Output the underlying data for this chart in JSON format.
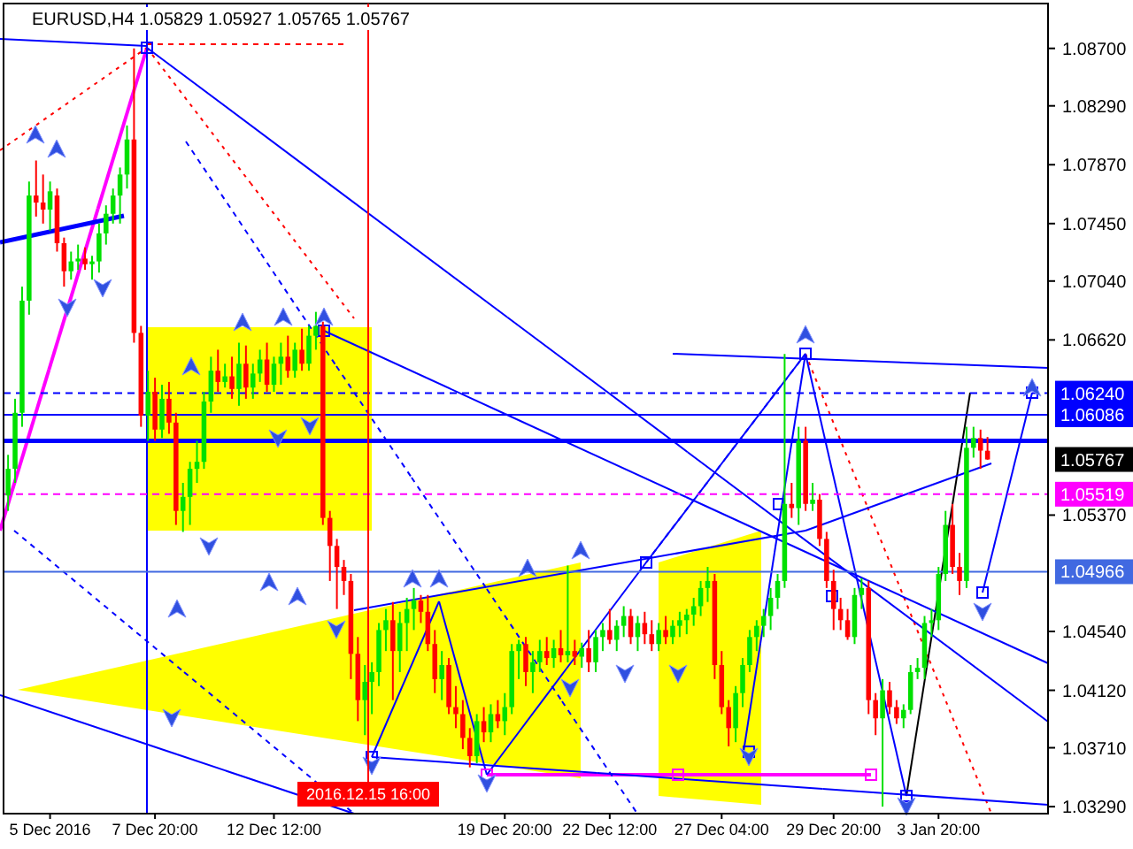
{
  "chart_data": {
    "type": "candlestick",
    "title": "EURUSD,H4  1.05829 1.05927 1.05765 1.05767",
    "categories": [
      null,
      null,
      null,
      null,
      null,
      null,
      "5 Dec 2016",
      null,
      null,
      null,
      null,
      null,
      null,
      null,
      null,
      null,
      null,
      null,
      null,
      null,
      null,
      "7 Dec 20:00",
      null,
      null,
      null,
      null,
      null,
      null,
      null,
      null,
      null,
      null,
      null,
      null,
      null,
      null,
      null,
      null,
      "12 Dec 12:00",
      null,
      null,
      null,
      null,
      null,
      null,
      null,
      null,
      null,
      null,
      null,
      null,
      null,
      null,
      null,
      null,
      null,
      null,
      null,
      null,
      null,
      null,
      null,
      null,
      null,
      null,
      null,
      null,
      null,
      null,
      null,
      null,
      "19 Dec 20:00",
      null,
      null,
      null,
      null,
      null,
      null,
      null,
      null,
      null,
      null,
      null,
      null,
      null,
      null,
      "22 Dec 12:00",
      null,
      null,
      null,
      null,
      null,
      null,
      null,
      null,
      null,
      null,
      null,
      null,
      null,
      null,
      null,
      "27 Dec 04:00",
      null,
      null,
      null,
      null,
      null,
      null,
      null,
      null,
      null,
      null,
      null,
      null,
      null,
      null,
      null,
      "29 Dec 20:00",
      null,
      null,
      null,
      null,
      null,
      null,
      null,
      null,
      null,
      null,
      null,
      null,
      null,
      null,
      "3 Jan 20:00",
      null,
      null,
      null,
      null,
      null,
      null,
      null,
      null,
      null,
      null,
      null,
      null,
      null,
      null,
      null
    ],
    "ohlc": [
      [
        1.0551,
        1.058,
        1.054,
        1.057
      ],
      [
        1.057,
        1.062,
        1.056,
        1.061
      ],
      [
        1.061,
        1.07,
        1.06,
        1.069
      ],
      [
        1.069,
        1.0775,
        1.068,
        1.0765
      ],
      [
        1.0765,
        1.079,
        1.075,
        1.076
      ],
      [
        1.076,
        1.078,
        1.0745,
        1.0755
      ],
      [
        1.0755,
        1.0775,
        1.074,
        1.0768
      ],
      [
        1.0765,
        1.077,
        1.0725,
        1.0731
      ],
      [
        1.0731,
        1.0735,
        1.07,
        1.0711
      ],
      [
        1.0711,
        1.0725,
        1.0705,
        1.0718
      ],
      [
        1.0718,
        1.073,
        1.0712,
        1.072
      ],
      [
        1.072,
        1.0728,
        1.0712,
        1.0716
      ],
      [
        1.0716,
        1.0722,
        1.0705,
        1.0718
      ],
      [
        1.0718,
        1.0745,
        1.071,
        1.0738
      ],
      [
        1.0738,
        1.0758,
        1.073,
        1.0752
      ],
      [
        1.0752,
        1.077,
        1.0745,
        1.0765
      ],
      [
        1.0765,
        1.0785,
        1.0745,
        1.078
      ],
      [
        1.078,
        1.0815,
        1.077,
        1.0805
      ],
      [
        1.0805,
        1.087,
        1.066,
        1.0667
      ],
      [
        1.0667,
        1.0672,
        1.06,
        1.0608
      ],
      [
        1.0608,
        1.064,
        1.059,
        1.0625
      ],
      [
        1.0625,
        1.0635,
        1.059,
        1.0598
      ],
      [
        1.0598,
        1.063,
        1.0592,
        1.062
      ],
      [
        1.062,
        1.0632,
        1.0595,
        1.0603
      ],
      [
        1.0603,
        1.061,
        1.053,
        1.054
      ],
      [
        1.054,
        1.056,
        1.0525,
        1.055
      ],
      [
        1.055,
        1.0575,
        1.053,
        1.057
      ],
      [
        1.057,
        1.059,
        1.056,
        1.0575
      ],
      [
        1.0575,
        1.0625,
        1.057,
        1.0618
      ],
      [
        1.0618,
        1.065,
        1.061,
        1.064
      ],
      [
        1.064,
        1.0655,
        1.0625,
        1.0632
      ],
      [
        1.0632,
        1.0645,
        1.0628,
        1.0636
      ],
      [
        1.0636,
        1.065,
        1.062,
        1.0627
      ],
      [
        1.0627,
        1.066,
        1.0615,
        1.0645
      ],
      [
        1.0645,
        1.0658,
        1.062,
        1.0628
      ],
      [
        1.0628,
        1.0645,
        1.062,
        1.0638
      ],
      [
        1.0638,
        1.0655,
        1.0632,
        1.0648
      ],
      [
        1.0648,
        1.066,
        1.0625,
        1.063
      ],
      [
        1.063,
        1.065,
        1.0625,
        1.0645
      ],
      [
        1.0645,
        1.066,
        1.063,
        1.065
      ],
      [
        1.065,
        1.0665,
        1.0635,
        1.064
      ],
      [
        1.064,
        1.066,
        1.0635,
        1.0655
      ],
      [
        1.0655,
        1.067,
        1.064,
        1.0645
      ],
      [
        1.0645,
        1.0672,
        1.064,
        1.0665
      ],
      [
        1.0665,
        1.0682,
        1.0655,
        1.0672
      ],
      [
        1.0672,
        1.0675,
        1.053,
        1.0535
      ],
      [
        1.0535,
        1.054,
        1.049,
        1.0515
      ],
      [
        1.0515,
        1.052,
        1.047,
        1.05
      ],
      [
        1.05,
        1.0505,
        1.048,
        1.049
      ],
      [
        1.049,
        1.0495,
        1.042,
        1.0438
      ],
      [
        1.0438,
        1.045,
        1.039,
        1.0405
      ],
      [
        1.0405,
        1.043,
        1.038,
        1.0418
      ],
      [
        1.0418,
        1.0432,
        1.0395,
        1.0425
      ],
      [
        1.0425,
        1.046,
        1.0415,
        1.0455
      ],
      [
        1.0455,
        1.047,
        1.044,
        1.0462
      ],
      [
        1.0462,
        1.0475,
        1.0405,
        1.044
      ],
      [
        1.044,
        1.0468,
        1.0425,
        1.046
      ],
      [
        1.046,
        1.0478,
        1.044,
        1.047
      ],
      [
        1.047,
        1.0485,
        1.0455,
        1.0476
      ],
      [
        1.0476,
        1.048,
        1.046,
        1.0468
      ],
      [
        1.0468,
        1.048,
        1.044,
        1.0445
      ],
      [
        1.0445,
        1.0455,
        1.041,
        1.042
      ],
      [
        1.042,
        1.044,
        1.0405,
        1.043
      ],
      [
        1.043,
        1.0435,
        1.0395,
        1.04
      ],
      [
        1.04,
        1.0415,
        1.0385,
        1.0395
      ],
      [
        1.0395,
        1.0405,
        1.037,
        1.0378
      ],
      [
        1.0378,
        1.0385,
        1.0357,
        1.0365
      ],
      [
        1.0365,
        1.0395,
        1.036,
        1.039
      ],
      [
        1.039,
        1.04,
        1.0375,
        1.0382
      ],
      [
        1.0382,
        1.0402,
        1.0375,
        1.0395
      ],
      [
        1.0395,
        1.0405,
        1.0385,
        1.039
      ],
      [
        1.039,
        1.041,
        1.038,
        1.04
      ],
      [
        1.04,
        1.0445,
        1.0395,
        1.044
      ],
      [
        1.044,
        1.0448,
        1.042,
        1.0445
      ],
      [
        1.0445,
        1.045,
        1.0415,
        1.0425
      ],
      [
        1.0425,
        1.044,
        1.041,
        1.0432
      ],
      [
        1.0432,
        1.0448,
        1.0425,
        1.044
      ],
      [
        1.044,
        1.045,
        1.043,
        1.0435
      ],
      [
        1.0435,
        1.0448,
        1.0428,
        1.0442
      ],
      [
        1.0442,
        1.0455,
        1.0432,
        1.0437
      ],
      [
        1.0437,
        1.0501,
        1.0432,
        1.044
      ],
      [
        1.044,
        1.0448,
        1.043,
        1.0436
      ],
      [
        1.0436,
        1.0446,
        1.0428,
        1.0442
      ],
      [
        1.0442,
        1.0455,
        1.0425,
        1.0432
      ],
      [
        1.0432,
        1.0455,
        1.0425,
        1.045
      ],
      [
        1.045,
        1.046,
        1.044,
        1.0455
      ],
      [
        1.0455,
        1.047,
        1.0445,
        1.0448
      ],
      [
        1.0448,
        1.0462,
        1.044,
        1.0458
      ],
      [
        1.0458,
        1.0472,
        1.045,
        1.0465
      ],
      [
        1.0465,
        1.047,
        1.0445,
        1.045
      ],
      [
        1.045,
        1.0465,
        1.044,
        1.046
      ],
      [
        1.046,
        1.0468,
        1.0445,
        1.0452
      ],
      [
        1.0452,
        1.0462,
        1.044,
        1.0445
      ],
      [
        1.0445,
        1.046,
        1.044,
        1.0455
      ],
      [
        1.0455,
        1.0465,
        1.0445,
        1.045
      ],
      [
        1.045,
        1.0462,
        1.0445,
        1.0458
      ],
      [
        1.0458,
        1.0468,
        1.045,
        1.0462
      ],
      [
        1.0462,
        1.047,
        1.0452,
        1.0466
      ],
      [
        1.0466,
        1.0478,
        1.0458,
        1.0472
      ],
      [
        1.0472,
        1.049,
        1.0465,
        1.0485
      ],
      [
        1.0485,
        1.05,
        1.0475,
        1.049
      ],
      [
        1.049,
        1.0495,
        1.042,
        1.043
      ],
      [
        1.043,
        1.044,
        1.0395,
        1.04
      ],
      [
        1.04,
        1.0405,
        1.0372,
        1.0385
      ],
      [
        1.0385,
        1.0415,
        1.0375,
        1.041
      ],
      [
        1.041,
        1.0435,
        1.04,
        1.043
      ],
      [
        1.043,
        1.0455,
        1.0425,
        1.045
      ],
      [
        1.045,
        1.0462,
        1.044,
        1.0458
      ],
      [
        1.0458,
        1.047,
        1.045,
        1.0465
      ],
      [
        1.0465,
        1.0485,
        1.0455,
        1.0478
      ],
      [
        1.0478,
        1.0495,
        1.047,
        1.049
      ],
      [
        1.049,
        1.0652,
        1.0485,
        1.0545
      ],
      [
        1.0545,
        1.056,
        1.0535,
        1.0542
      ],
      [
        1.0542,
        1.06,
        1.053,
        1.059
      ],
      [
        1.059,
        1.06,
        1.054,
        1.0545
      ],
      [
        1.0545,
        1.056,
        1.054,
        1.0548
      ],
      [
        1.0548,
        1.0552,
        1.0515,
        1.052
      ],
      [
        1.052,
        1.0525,
        1.0485,
        1.049
      ],
      [
        1.049,
        1.0498,
        1.0455,
        1.047
      ],
      [
        1.047,
        1.0478,
        1.0455,
        1.0462
      ],
      [
        1.0462,
        1.047,
        1.0448,
        1.045
      ],
      [
        1.045,
        1.0485,
        1.0445,
        1.048
      ],
      [
        1.048,
        1.0492,
        1.047,
        1.0485
      ],
      [
        1.0485,
        1.049,
        1.0395,
        1.0405
      ],
      [
        1.0405,
        1.041,
        1.038,
        1.0392
      ],
      [
        1.0392,
        1.042,
        1.0329,
        1.0412
      ],
      [
        1.0412,
        1.0418,
        1.0395,
        1.04
      ],
      [
        1.04,
        1.0405,
        1.0388,
        1.0392
      ],
      [
        1.0392,
        1.0402,
        1.0385,
        1.0398
      ],
      [
        1.0398,
        1.043,
        1.0395,
        1.0425
      ],
      [
        1.0425,
        1.0435,
        1.042,
        1.0428
      ],
      [
        1.0428,
        1.0465,
        1.042,
        1.046
      ],
      [
        1.046,
        1.047,
        1.045,
        1.0462
      ],
      [
        1.0462,
        1.05,
        1.0455,
        1.0495
      ],
      [
        1.0495,
        1.054,
        1.049,
        1.053
      ],
      [
        1.053,
        1.0545,
        1.0495,
        1.05
      ],
      [
        1.05,
        1.051,
        1.048,
        1.049
      ],
      [
        1.049,
        1.06,
        1.0485,
        1.0585
      ],
      [
        1.0585,
        1.06,
        1.0578,
        1.0592
      ],
      [
        1.0592,
        1.0598,
        1.057,
        1.0583
      ],
      [
        1.05829,
        1.05927,
        1.05765,
        1.05767
      ],
      null,
      null,
      null,
      null,
      null,
      null,
      null,
      null
    ],
    "ylim": [
      1.0324,
      1.0902
    ],
    "yticks": [
      {
        "value": 1.087,
        "label": "1.08700"
      },
      {
        "value": 1.0829,
        "label": "1.08290"
      },
      {
        "value": 1.0787,
        "label": "1.07870"
      },
      {
        "value": 1.0745,
        "label": "1.07450"
      },
      {
        "value": 1.0704,
        "label": "1.07040"
      },
      {
        "value": 1.0662,
        "label": "1.06620"
      },
      {
        "value": 1.0537,
        "label": "1.05370"
      },
      {
        "value": 1.0454,
        "label": "1.04540"
      },
      {
        "value": 1.0412,
        "label": "1.04120"
      },
      {
        "value": 1.0371,
        "label": "1.03710"
      },
      {
        "value": 1.0329,
        "label": "1.03290"
      }
    ],
    "ref_lines": [
      {
        "axis": "y",
        "value": 1.0624,
        "label": "1.06240",
        "color": "#0000ff",
        "line_style": "dashed"
      },
      {
        "axis": "y",
        "value": 1.06086,
        "label": "1.06086",
        "color": "#0000ff",
        "line_style": "solid"
      },
      {
        "axis": "y",
        "value": 1.059,
        "color": "#0000ff",
        "line_style": "solid"
      },
      {
        "axis": "y",
        "value": 1.05519,
        "label": "1.05519",
        "color": "#ff00ff",
        "line_style": "dashed"
      },
      {
        "axis": "y",
        "value": 1.04966,
        "label": "1.04966",
        "color": "#4169e1",
        "line_style": "solid"
      }
    ],
    "annotations": [
      "2016.12.15 16:00",
      "1.05767"
    ],
    "grid": false
  }
}
